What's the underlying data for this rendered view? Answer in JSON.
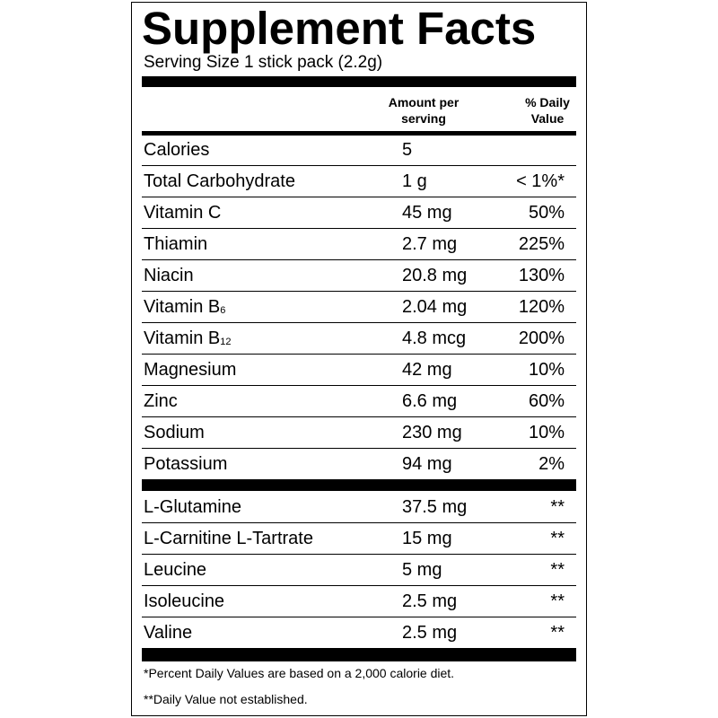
{
  "header": {
    "title": "Supplement Facts",
    "serving": "Serving Size 1 stick pack (2.2g)",
    "amount_heading": [
      "Amount per",
      "serving"
    ],
    "dv_heading": [
      "% Daily",
      "Value"
    ]
  },
  "nutrients": [
    {
      "name": "Calories",
      "amount": "5"
    },
    {
      "name": "Total Carbohydrate",
      "amount": "1 g",
      "dv": "< 1%*"
    },
    {
      "name": "Vitamin C",
      "amount": "45 mg",
      "dv": "50%"
    },
    {
      "name": "Thiamin",
      "amount": "2.7 mg",
      "dv": "225%"
    },
    {
      "name": "Niacin",
      "amount": "20.8 mg",
      "dv": "130%"
    },
    {
      "name": "Vitamin B",
      "sub": "6",
      "amount": "2.04 mg",
      "dv": "120%"
    },
    {
      "name": "Vitamin B",
      "sub": "12",
      "amount": "4.8 mcg",
      "dv": "200%"
    },
    {
      "name": "Magnesium",
      "amount": "42 mg",
      "dv": "10%"
    },
    {
      "name": "Zinc",
      "amount": "6.6 mg",
      "dv": "60%"
    },
    {
      "name": "Sodium",
      "amount": "230 mg",
      "dv": "10%"
    },
    {
      "name": "Potassium",
      "amount": "94 mg",
      "dv": "2%"
    }
  ],
  "other_ingredients": [
    {
      "name": "L-Glutamine",
      "amount": "37.5 mg",
      "dv": "**"
    },
    {
      "name": "L-Carnitine L-Tartrate",
      "amount": "15 mg",
      "dv": "**"
    },
    {
      "name": "Leucine",
      "amount": "5 mg",
      "dv": "**"
    },
    {
      "name": "Isoleucine",
      "amount": "2.5 mg",
      "dv": "**"
    },
    {
      "name": "Valine",
      "amount": "2.5 mg",
      "dv": "**"
    }
  ],
  "footnotes": [
    "*Percent Daily Values are based on a 2,000 calorie diet.",
    "**Daily Value not established."
  ]
}
